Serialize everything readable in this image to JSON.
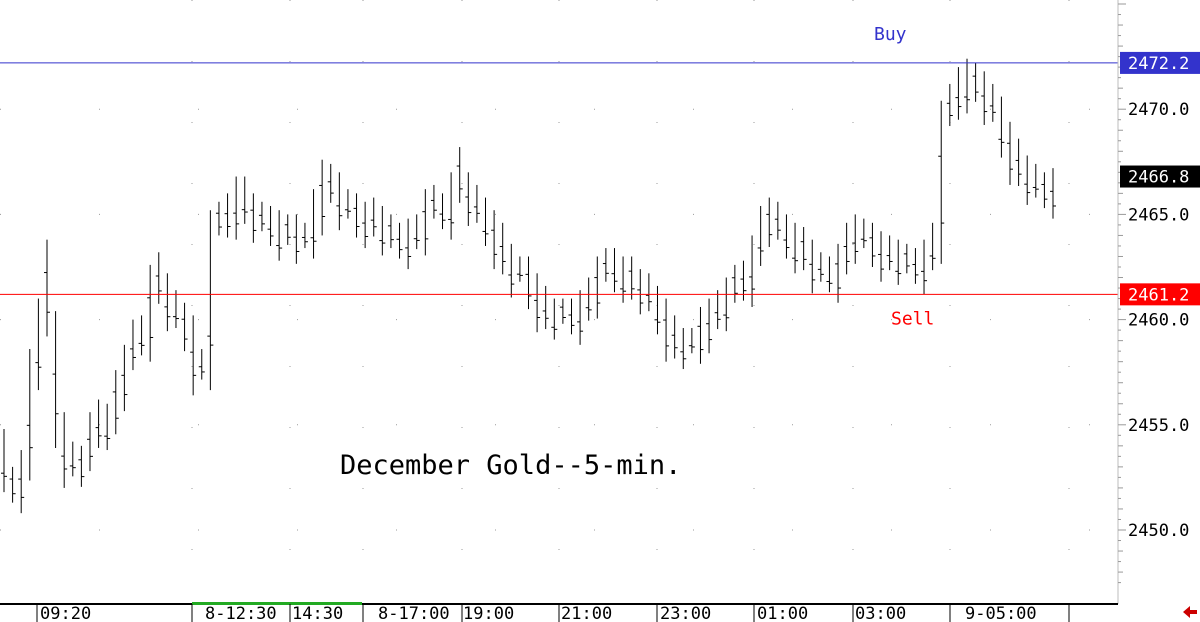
{
  "chart_data": {
    "type": "ohlc",
    "title": "December Gold--5-min.",
    "ylim": [
      2447.5,
      2475.0
    ],
    "y_ticks": [
      2450.0,
      2455.0,
      2460.0,
      2465.0,
      2470.0
    ],
    "y_tick_labels": [
      "2450.0",
      "2455.0",
      "2460.0",
      "2465.0",
      "2470.0"
    ],
    "x_labels": [
      "09:20",
      "8-12:30",
      "14:30",
      "8-17:00",
      "19:00",
      "21:00",
      "23:00",
      "01:00",
      "03:00",
      "9-05:00"
    ],
    "last_price": 2466.8,
    "last_price_label": "2466.8",
    "levels": [
      {
        "name": "Buy",
        "value": 2472.2,
        "value_label": "2472.2",
        "color": "#3333cc"
      },
      {
        "name": "Sell",
        "value": 2461.2,
        "value_label": "2461.2",
        "color": "#ff0000"
      }
    ],
    "colors": {
      "bars": "#000000",
      "grid": "#9a9a9a",
      "session_bar": "#22aa22",
      "last_price_box": "#000000",
      "arrow": "#cc0000"
    },
    "grid": true,
    "high": [
      2454.8,
      2453.0,
      2453.8,
      2458.6,
      2461.0,
      2463.8,
      2460.4,
      2455.6,
      2454.2,
      2454.0,
      2455.6,
      2456.2,
      2456.0,
      2457.6,
      2458.8,
      2460.0,
      2460.2,
      2462.6,
      2463.2,
      2462.2,
      2461.4,
      2460.8,
      2460.2,
      2458.6,
      2465.2,
      2465.6,
      2466.0,
      2466.8,
      2466.8,
      2466.0,
      2465.6,
      2465.4,
      2465.2,
      2465.0,
      2465.0,
      2464.6,
      2466.2,
      2467.6,
      2467.4,
      2467.0,
      2466.2,
      2466.0,
      2465.6,
      2465.8,
      2465.4,
      2465.0,
      2464.6,
      2464.8,
      2465.0,
      2466.2,
      2466.4,
      2466.0,
      2467.0,
      2468.2,
      2467.0,
      2466.4,
      2465.8,
      2465.2,
      2464.6,
      2463.6,
      2463.0,
      2463.0,
      2462.2,
      2461.6,
      2461.0,
      2461.0,
      2461.0,
      2461.4,
      2462.0,
      2463.0,
      2463.4,
      2463.4,
      2463.0,
      2463.0,
      2462.4,
      2462.2,
      2461.6,
      2461.0,
      2460.2,
      2459.6,
      2459.6,
      2460.6,
      2461.0,
      2461.4,
      2462.0,
      2462.6,
      2462.8,
      2464.0,
      2465.4,
      2465.8,
      2465.6,
      2465.0,
      2464.6,
      2464.4,
      2463.8,
      2463.2,
      2463.0,
      2463.6,
      2464.6,
      2465.0,
      2464.8,
      2464.6,
      2464.2,
      2464.0,
      2463.8,
      2463.6,
      2463.4,
      2463.8,
      2464.6,
      2470.4,
      2471.2,
      2472.0,
      2472.4,
      2472.2,
      2471.8,
      2471.2,
      2470.6,
      2469.4,
      2468.6,
      2467.8,
      2467.4,
      2467.0,
      2467.2
    ]
  }
}
